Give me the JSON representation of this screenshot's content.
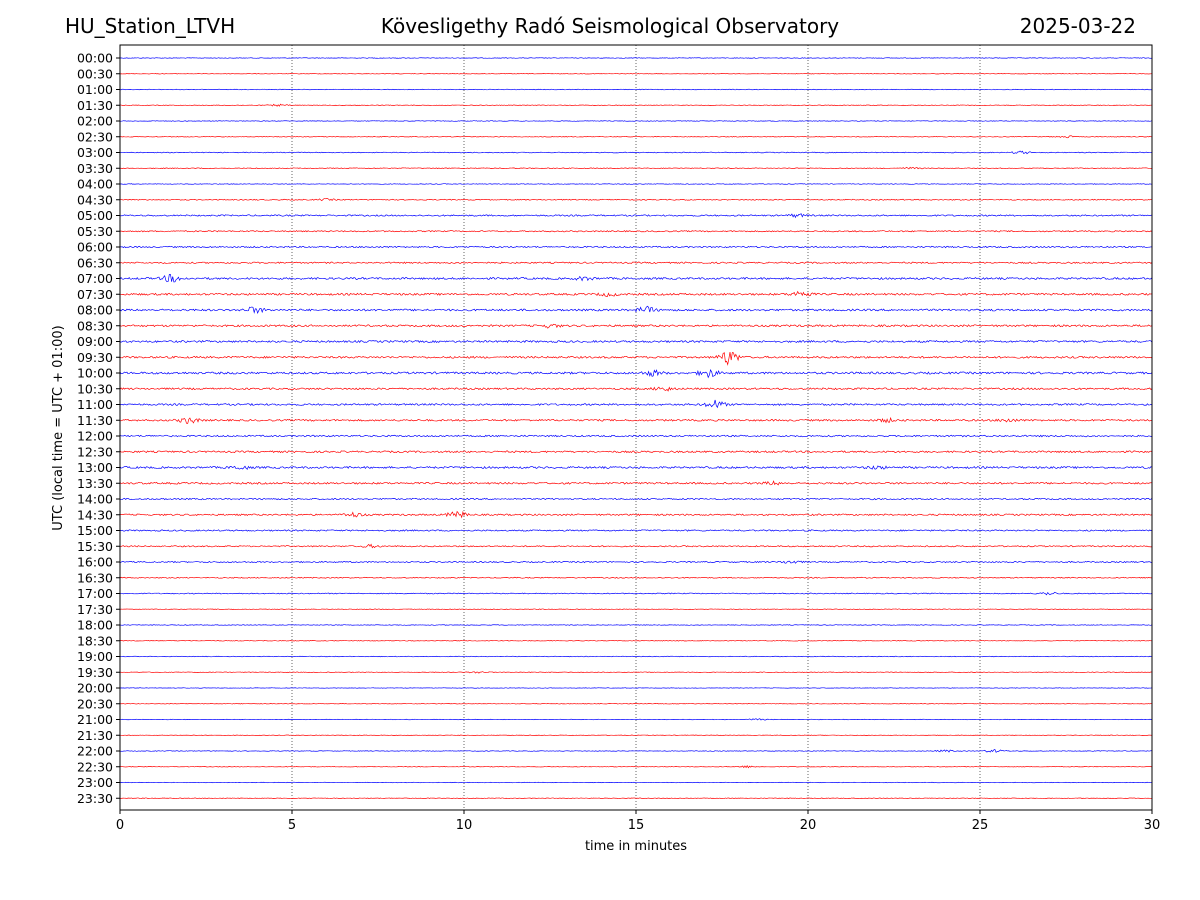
{
  "header": {
    "station": "HU_Station_LTVH",
    "observatory": "Kövesligethy Radó Seismological Observatory",
    "date": "2025-03-22"
  },
  "chart_data": {
    "type": "line",
    "title": "Kövesligethy Radó Seismological Observatory",
    "xlabel": "time in minutes",
    "ylabel": "UTC (local time = UTC + 01:00)",
    "xlim": [
      0,
      30
    ],
    "x_ticks": [
      0,
      5,
      10,
      15,
      20,
      25,
      30
    ],
    "grid": "vertical dotted at x ticks",
    "trace_colors": [
      "#0000ff",
      "#ff0000"
    ],
    "rows": [
      "00:00",
      "00:30",
      "01:00",
      "01:30",
      "02:00",
      "02:30",
      "03:00",
      "03:30",
      "04:00",
      "04:30",
      "05:00",
      "05:30",
      "06:00",
      "06:30",
      "07:00",
      "07:30",
      "08:00",
      "08:30",
      "09:00",
      "09:30",
      "10:00",
      "10:30",
      "11:00",
      "11:30",
      "12:00",
      "12:30",
      "13:00",
      "13:30",
      "14:00",
      "14:30",
      "15:00",
      "15:30",
      "16:00",
      "16:30",
      "17:00",
      "17:30",
      "18:00",
      "18:30",
      "19:00",
      "19:30",
      "20:00",
      "20:30",
      "21:00",
      "21:30",
      "22:00",
      "22:30",
      "23:00",
      "23:30"
    ],
    "noise_level": [
      0.2,
      0.15,
      0.2,
      0.2,
      0.2,
      0.2,
      0.25,
      0.25,
      0.2,
      0.3,
      0.45,
      0.4,
      0.45,
      0.45,
      0.6,
      0.6,
      0.6,
      0.6,
      0.6,
      0.6,
      0.65,
      0.55,
      0.55,
      0.55,
      0.5,
      0.55,
      0.6,
      0.55,
      0.45,
      0.5,
      0.45,
      0.4,
      0.4,
      0.3,
      0.3,
      0.2,
      0.2,
      0.2,
      0.2,
      0.2,
      0.15,
      0.15,
      0.15,
      0.15,
      0.2,
      0.15,
      0.15,
      0.2
    ],
    "events": [
      {
        "row": "01:30",
        "minute": 4.6,
        "amplitude": 0.5
      },
      {
        "row": "02:30",
        "minute": 27.5,
        "amplitude": 0.6
      },
      {
        "row": "03:00",
        "minute": 26.2,
        "amplitude": 0.8
      },
      {
        "row": "03:30",
        "minute": 23.0,
        "amplitude": 0.5
      },
      {
        "row": "04:30",
        "minute": 6.0,
        "amplitude": 0.5
      },
      {
        "row": "05:00",
        "minute": 19.7,
        "amplitude": 0.9
      },
      {
        "row": "07:00",
        "minute": 1.5,
        "amplitude": 2.2
      },
      {
        "row": "07:00",
        "minute": 13.5,
        "amplitude": 1.0
      },
      {
        "row": "07:30",
        "minute": 19.8,
        "amplitude": 1.8
      },
      {
        "row": "07:30",
        "minute": 14.2,
        "amplitude": 0.9
      },
      {
        "row": "08:00",
        "minute": 3.9,
        "amplitude": 1.8
      },
      {
        "row": "08:00",
        "minute": 15.3,
        "amplitude": 1.9
      },
      {
        "row": "08:30",
        "minute": 12.5,
        "amplitude": 1.0
      },
      {
        "row": "09:30",
        "minute": 17.7,
        "amplitude": 4.5
      },
      {
        "row": "10:00",
        "minute": 17.1,
        "amplitude": 2.5
      },
      {
        "row": "10:00",
        "minute": 15.5,
        "amplitude": 1.6
      },
      {
        "row": "10:30",
        "minute": 15.8,
        "amplitude": 1.3
      },
      {
        "row": "11:00",
        "minute": 17.3,
        "amplitude": 2.5
      },
      {
        "row": "11:30",
        "minute": 2.0,
        "amplitude": 1.8
      },
      {
        "row": "11:30",
        "minute": 22.3,
        "amplitude": 1.0
      },
      {
        "row": "11:30",
        "minute": 25.8,
        "amplitude": 1.0
      },
      {
        "row": "13:00",
        "minute": 3.5,
        "amplitude": 1.0
      },
      {
        "row": "13:00",
        "minute": 22.0,
        "amplitude": 0.9
      },
      {
        "row": "13:30",
        "minute": 19.0,
        "amplitude": 0.9
      },
      {
        "row": "14:30",
        "minute": 9.8,
        "amplitude": 2.0
      },
      {
        "row": "14:30",
        "minute": 6.8,
        "amplitude": 1.3
      },
      {
        "row": "15:30",
        "minute": 7.3,
        "amplitude": 0.8
      },
      {
        "row": "16:00",
        "minute": 19.5,
        "amplitude": 0.9
      },
      {
        "row": "17:00",
        "minute": 27.0,
        "amplitude": 0.9
      },
      {
        "row": "19:30",
        "minute": 10.4,
        "amplitude": 0.5
      },
      {
        "row": "21:00",
        "minute": 18.5,
        "amplitude": 0.5
      },
      {
        "row": "22:00",
        "minute": 25.4,
        "amplitude": 0.9
      },
      {
        "row": "22:00",
        "minute": 24.0,
        "amplitude": 0.6
      },
      {
        "row": "22:30",
        "minute": 18.2,
        "amplitude": 0.6
      }
    ]
  }
}
